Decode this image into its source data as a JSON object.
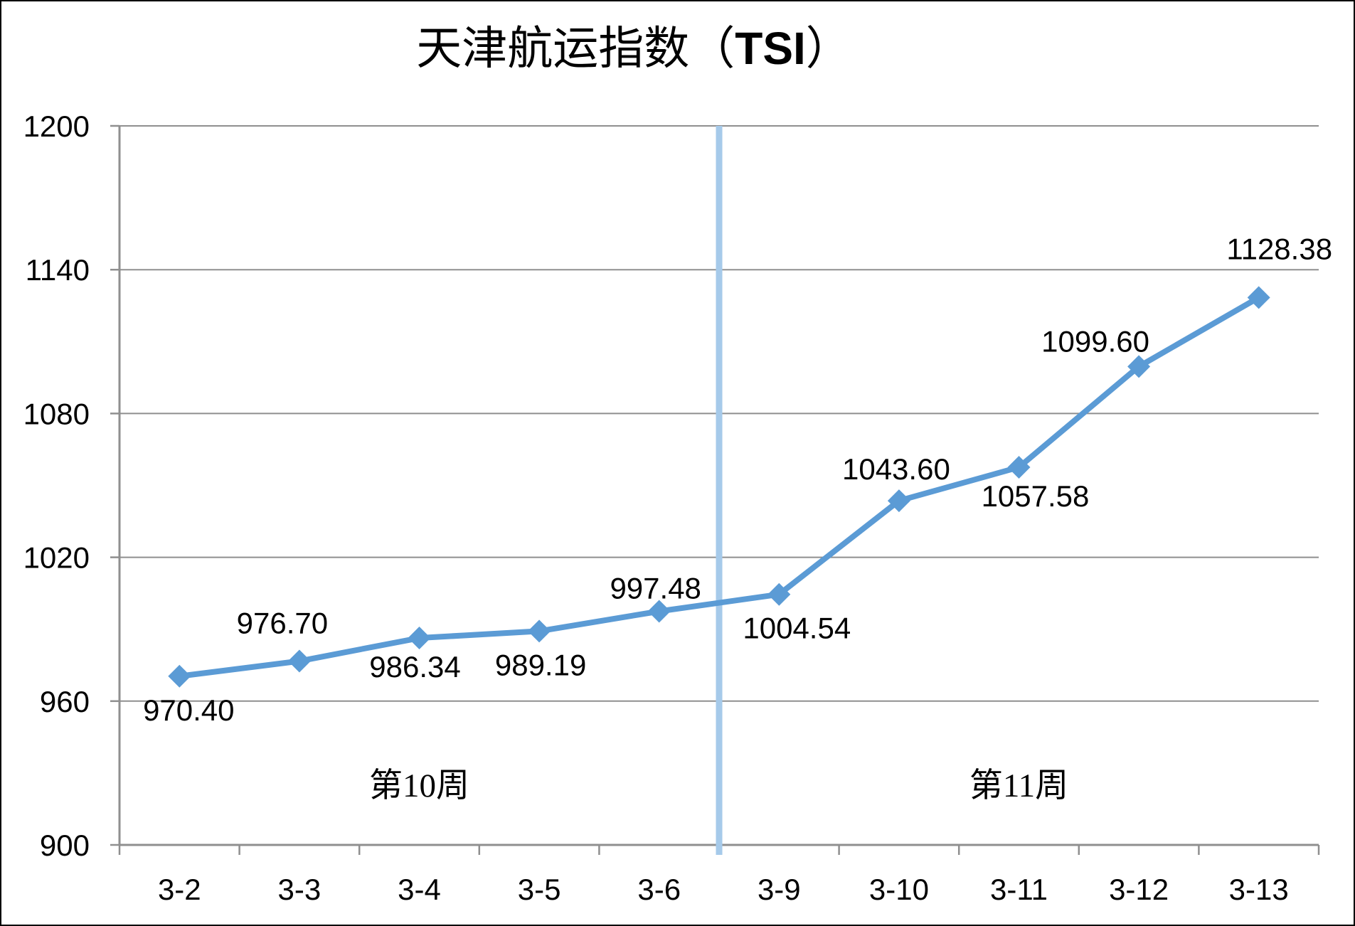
{
  "window": {
    "background": "#FFFFFF",
    "border_color": "#000000"
  },
  "title": {
    "prefix": "天津航运指数（",
    "acronym": "TSI",
    "suffix": "）"
  },
  "chart_data": {
    "type": "line",
    "title": "天津航运指数（TSI）",
    "categories": [
      "3-2",
      "3-3",
      "3-4",
      "3-5",
      "3-6",
      "3-9",
      "3-10",
      "3-11",
      "3-12",
      "3-13"
    ],
    "series": [
      {
        "name": "TSI",
        "values": [
          970.4,
          976.7,
          986.34,
          989.19,
          997.48,
          1004.54,
          1043.6,
          1057.58,
          1099.6,
          1128.38
        ],
        "labels": [
          "970.40",
          "976.70",
          "986.34",
          "989.19",
          "997.48",
          "1004.54",
          "1043.60",
          "1057.58",
          "1099.60",
          "1128.38"
        ],
        "label_pos": [
          "below",
          "above",
          "below",
          "below",
          "above",
          "below",
          "above",
          "below",
          "above",
          "above"
        ],
        "label_dx": [
          13,
          -24,
          -6,
          2,
          -5,
          25,
          -4,
          23,
          -61,
          29
        ],
        "label_dy": [
          0,
          -15,
          -7,
          0,
          6,
          0,
          -6,
          -7,
          3,
          -30
        ]
      }
    ],
    "xlabel": "",
    "ylabel": "",
    "ylim": [
      900,
      1200
    ],
    "yticks": [
      900,
      960,
      1020,
      1080,
      1140,
      1200
    ],
    "ytick_labels": [
      "900",
      "960",
      "1020",
      "1080",
      "1140",
      "1200"
    ],
    "grid": true,
    "legend_position": "none",
    "marker": "diamond",
    "separator": {
      "after_index": 4,
      "color": "#A6CAEA"
    },
    "annotations": [
      {
        "text": "第10周",
        "category_index": 2
      },
      {
        "text": "第11周",
        "category_index": 7
      }
    ],
    "colors": {
      "series": "#5B9BD5",
      "gridline": "#8F8F8F",
      "axis": "#8F8F8F",
      "text": "#000000"
    }
  }
}
